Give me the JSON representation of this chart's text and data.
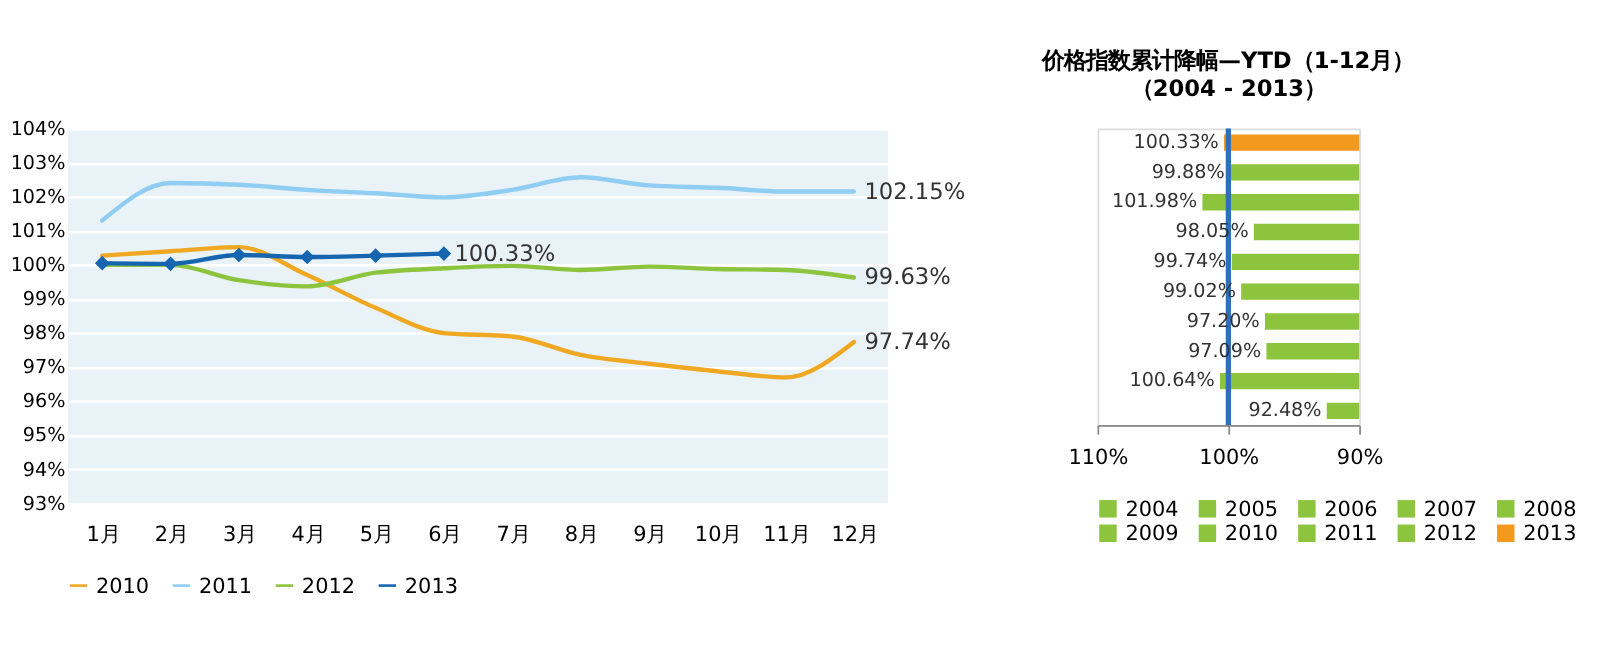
{
  "chart_data": [
    {
      "type": "line",
      "categories": [
        "1月",
        "2月",
        "3月",
        "4月",
        "5月",
        "6月",
        "7月",
        "8月",
        "9月",
        "10月",
        "11月",
        "12月"
      ],
      "ylim": [
        93,
        104
      ],
      "yticks": [
        {
          "value": 93,
          "label": "93%"
        },
        {
          "value": 94,
          "label": "94%"
        },
        {
          "value": 95,
          "label": "95%"
        },
        {
          "value": 96,
          "label": "96%"
        },
        {
          "value": 97,
          "label": "97%"
        },
        {
          "value": 98,
          "label": "98%"
        },
        {
          "value": 99,
          "label": "99%"
        },
        {
          "value": 100,
          "label": "100%"
        },
        {
          "value": 101,
          "label": "101%"
        },
        {
          "value": 102,
          "label": "102%"
        },
        {
          "value": 103,
          "label": "103%"
        },
        {
          "value": 104,
          "label": "104%"
        }
      ],
      "grid": "y",
      "legend": "bottom",
      "marker": "none",
      "series": [
        {
          "name": "2010",
          "color": "#f0a823",
          "values": [
            100.27,
            100.4,
            100.52,
            99.7,
            98.74,
            98.0,
            97.9,
            97.36,
            97.1,
            96.88,
            96.7,
            97.74
          ],
          "value_labels": [
            null,
            null,
            null,
            null,
            null,
            null,
            null,
            null,
            null,
            null,
            null,
            "97.74%"
          ]
        },
        {
          "name": "2011",
          "color": "#8fcdf2",
          "values": [
            101.3,
            102.4,
            102.35,
            102.2,
            102.1,
            101.98,
            102.2,
            102.57,
            102.33,
            102.26,
            102.15,
            102.15
          ],
          "value_labels": [
            null,
            null,
            null,
            null,
            null,
            null,
            null,
            null,
            null,
            null,
            null,
            "102.15%"
          ]
        },
        {
          "name": "2012",
          "color": "#8cc43e",
          "values": [
            100.0,
            100.0,
            99.55,
            99.37,
            99.77,
            99.9,
            99.97,
            99.85,
            99.95,
            99.88,
            99.85,
            99.63
          ],
          "value_labels": [
            null,
            null,
            null,
            null,
            null,
            null,
            null,
            null,
            null,
            null,
            null,
            "99.63%"
          ]
        },
        {
          "name": "2013",
          "color": "#1565b0",
          "marker": "diamond",
          "values": [
            100.05,
            100.03,
            100.29,
            100.23,
            100.27,
            100.33,
            null,
            null,
            null,
            null,
            null,
            null
          ],
          "value_labels": [
            null,
            null,
            null,
            null,
            null,
            "100.33%",
            null,
            null,
            null,
            null,
            null,
            null
          ]
        }
      ]
    },
    {
      "type": "bar",
      "orientation": "horizontal",
      "title": "价格指数累计降幅—YTD（1-12月）",
      "subtitle": "（2004 - 2013）",
      "categories": [
        null,
        null,
        null,
        null,
        null,
        null,
        null,
        null,
        null,
        null
      ],
      "xlim": [
        110,
        90
      ],
      "xticks": [
        {
          "value": 110,
          "label": "110%"
        },
        {
          "value": 100,
          "label": "100%"
        },
        {
          "value": 90,
          "label": "90%"
        }
      ],
      "grid": false,
      "legend": "bottom",
      "tick_labels": "x",
      "ref_lines": [
        {
          "axis": "x",
          "value": 100,
          "color": "#2e6fb8"
        }
      ],
      "series": [
        {
          "name": "2004",
          "color": "#8cc43e",
          "values": [
            null,
            null,
            null,
            null,
            null,
            null,
            null,
            null,
            null,
            92.48
          ],
          "value_labels": [
            null,
            null,
            null,
            null,
            null,
            null,
            null,
            null,
            null,
            "92.48%"
          ]
        },
        {
          "name": "2005",
          "color": "#8cc43e",
          "values": [
            null,
            null,
            null,
            null,
            null,
            null,
            null,
            null,
            100.64,
            null
          ],
          "value_labels": [
            null,
            null,
            null,
            null,
            null,
            null,
            null,
            null,
            "100.64%",
            null
          ]
        },
        {
          "name": "2006",
          "color": "#8cc43e",
          "values": [
            null,
            null,
            null,
            null,
            null,
            null,
            null,
            97.09,
            null,
            null
          ],
          "value_labels": [
            null,
            null,
            null,
            null,
            null,
            null,
            null,
            "97.09%",
            null,
            null
          ]
        },
        {
          "name": "2007",
          "color": "#8cc43e",
          "values": [
            null,
            null,
            null,
            null,
            null,
            null,
            97.2,
            null,
            null,
            null
          ],
          "value_labels": [
            null,
            null,
            null,
            null,
            null,
            null,
            "97.20%",
            null,
            null,
            null
          ]
        },
        {
          "name": "2008",
          "color": "#8cc43e",
          "values": [
            null,
            null,
            null,
            null,
            null,
            99.02,
            null,
            null,
            null,
            null
          ],
          "value_labels": [
            null,
            null,
            null,
            null,
            null,
            "99.02%",
            null,
            null,
            null,
            null
          ]
        },
        {
          "name": "2009",
          "color": "#8cc43e",
          "values": [
            null,
            null,
            null,
            null,
            99.74,
            null,
            null,
            null,
            null,
            null
          ],
          "value_labels": [
            null,
            null,
            null,
            null,
            "99.74%",
            null,
            null,
            null,
            null,
            null
          ]
        },
        {
          "name": "2010",
          "color": "#8cc43e",
          "values": [
            null,
            null,
            null,
            98.05,
            null,
            null,
            null,
            null,
            null,
            null
          ],
          "value_labels": [
            null,
            null,
            null,
            "98.05%",
            null,
            null,
            null,
            null,
            null,
            null
          ]
        },
        {
          "name": "2011",
          "color": "#8cc43e",
          "values": [
            null,
            null,
            101.98,
            null,
            null,
            null,
            null,
            null,
            null,
            null
          ],
          "value_labels": [
            null,
            null,
            "101.98%",
            null,
            null,
            null,
            null,
            null,
            null,
            null
          ]
        },
        {
          "name": "2012",
          "color": "#8cc43e",
          "values": [
            null,
            99.88,
            null,
            null,
            null,
            null,
            null,
            null,
            null,
            null
          ],
          "value_labels": [
            null,
            "99.88%",
            null,
            null,
            null,
            null,
            null,
            null,
            null,
            null
          ]
        },
        {
          "name": "2013",
          "color": "#f39a1e",
          "values": [
            100.33,
            null,
            null,
            null,
            null,
            null,
            null,
            null,
            null,
            null
          ],
          "value_labels": [
            "100.33%",
            null,
            null,
            null,
            null,
            null,
            null,
            null,
            null,
            null
          ]
        }
      ]
    }
  ]
}
